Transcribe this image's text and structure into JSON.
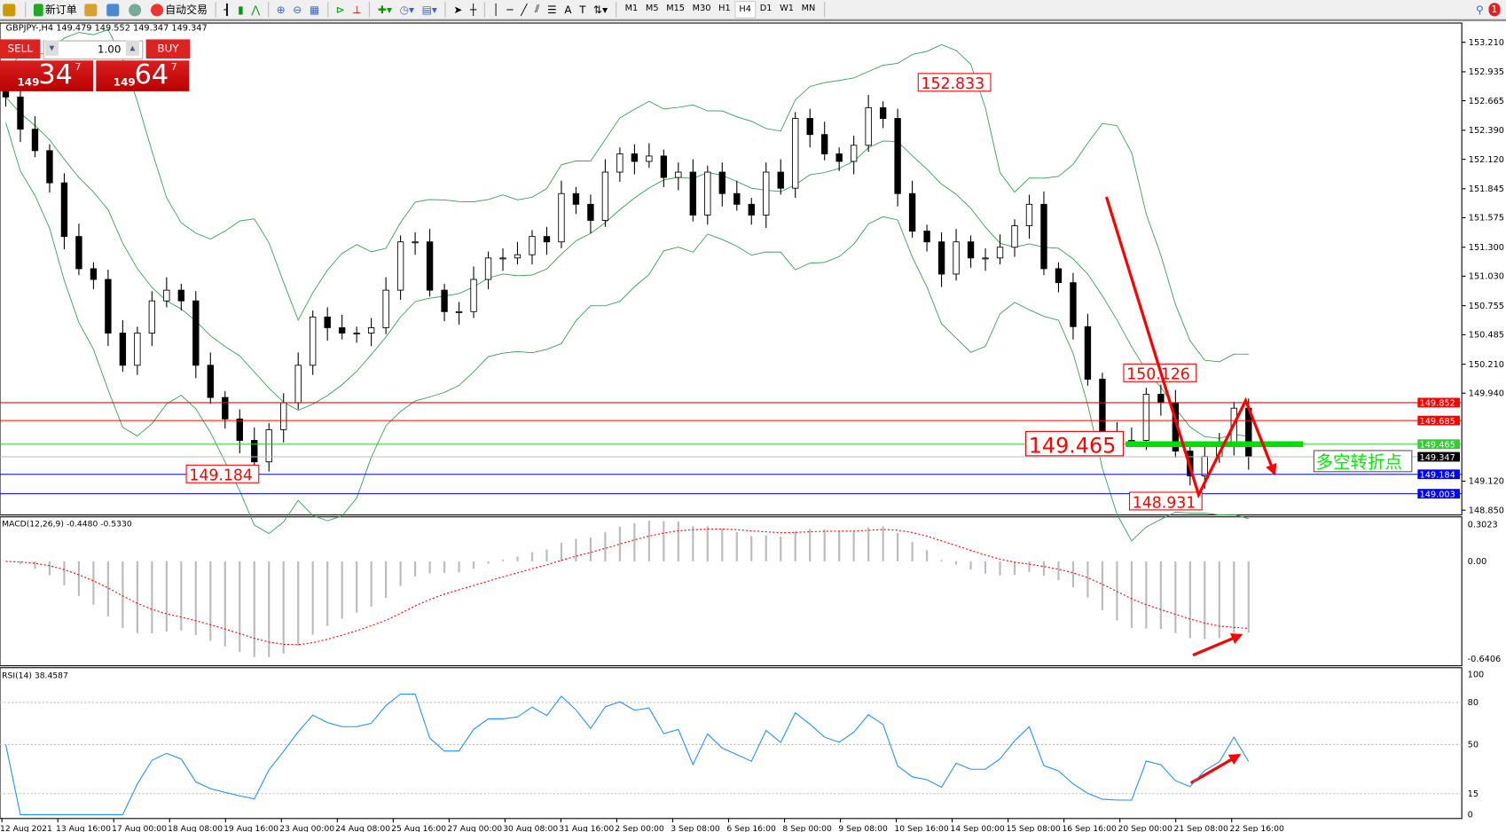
{
  "toolbar": {
    "new_order": "新订单",
    "auto_trading": "自动交易",
    "icons": [
      "zoom-icon",
      "new-order-icon",
      "metaeditor-icon",
      "history-icon",
      "signals-icon",
      "auto-trading-icon",
      "bar-chart-icon",
      "candlestick-icon",
      "line-chart-icon",
      "zoom-in-icon",
      "zoom-out-icon",
      "tile-icon",
      "autoscroll-icon",
      "chart-shift-icon",
      "indicators-icon",
      "periods-icon",
      "templates-icon",
      "cursor-icon",
      "crosshair-icon",
      "vertical-line-icon",
      "horizontal-line-icon",
      "trendline-icon",
      "equidistant-channel-icon",
      "fibonacci-icon",
      "text-icon",
      "text-label-icon",
      "arrows-icon"
    ],
    "timeframes": [
      "M1",
      "M5",
      "M15",
      "M30",
      "H1",
      "H4",
      "D1",
      "W1",
      "MN"
    ],
    "active_timeframe": "H4",
    "notification_count": "1"
  },
  "chart": {
    "header": "GBPJPY-,H4  149.479 149.552 149.347 149.347",
    "trade_panel": {
      "sell": "SELL",
      "buy": "BUY",
      "lot": "1.00",
      "bid_big": "149",
      "bid_pips": "34",
      "bid_frac": "7",
      "ask_big": "149",
      "ask_pips": "64",
      "ask_frac": "7"
    },
    "annotation_text": "多空转折点",
    "colors": {
      "up": "#ffffff",
      "down": "#000000",
      "bands": "#2e9e4e",
      "red": "#ff0000",
      "green": "#00cc00",
      "blue": "#0000ff",
      "rsi": "#1e90ff"
    }
  },
  "chart_data": [
    {
      "type": "candlestick",
      "title": "GBPJPY-,H4",
      "closes": [
        152.7,
        152.4,
        152.2,
        151.9,
        151.4,
        151.1,
        151.0,
        150.5,
        150.2,
        150.5,
        150.8,
        150.9,
        150.8,
        150.2,
        149.9,
        149.7,
        149.5,
        149.3,
        149.6,
        149.85,
        150.2,
        150.65,
        150.55,
        150.5,
        150.5,
        150.55,
        150.9,
        151.35,
        151.35,
        150.9,
        150.7,
        150.7,
        151.0,
        151.2,
        151.2,
        151.23,
        151.4,
        151.35,
        151.8,
        151.7,
        151.55,
        152.0,
        152.17,
        152.1,
        152.15,
        151.95,
        152.0,
        151.6,
        152.0,
        151.8,
        151.7,
        151.6,
        152.0,
        151.85,
        152.5,
        152.35,
        152.17,
        152.1,
        152.25,
        152.6,
        152.5,
        151.8,
        151.45,
        151.35,
        151.05,
        151.35,
        151.2,
        151.2,
        151.3,
        151.5,
        151.7,
        151.1,
        150.97,
        150.56,
        150.07,
        149.58,
        149.5,
        149.5,
        149.93,
        149.85,
        149.4,
        149.17,
        149.35,
        149.45,
        149.8,
        149.347
      ],
      "ylim": [
        148.76,
        153.35
      ],
      "y_ticks": [
        "153.210",
        "152.935",
        "152.665",
        "152.390",
        "152.120",
        "151.845",
        "151.575",
        "151.300",
        "151.030",
        "150.755",
        "150.485",
        "150.210",
        "149.940",
        "149.120",
        "148.850"
      ],
      "x_ticks": [
        "12 Aug 2021",
        "13 Aug 16:00",
        "17 Aug 00:00",
        "18 Aug 08:00",
        "19 Aug 16:00",
        "23 Aug 00:00",
        "24 Aug 08:00",
        "25 Aug 16:00",
        "27 Aug 00:00",
        "30 Aug 08:00",
        "31 Aug 16:00",
        "2 Sep 00:00",
        "3 Sep 08:00",
        "6 Sep 16:00",
        "8 Sep 00:00",
        "9 Sep 08:00",
        "10 Sep 16:00",
        "14 Sep 00:00",
        "15 Sep 08:00",
        "16 Sep 16:00",
        "20 Sep 00:00",
        "21 Sep 08:00",
        "22 Sep 16:00"
      ],
      "indicator": "Bollinger Bands",
      "hlines": [
        {
          "value": "149.852",
          "color": "#ff0000"
        },
        {
          "value": "149.685",
          "color": "#ff0000"
        },
        {
          "value": "149.465",
          "color": "#33cc33"
        },
        {
          "value": "149.347",
          "color": "#000000"
        },
        {
          "value": "149.184",
          "color": "#0000ff"
        },
        {
          "value": "149.003",
          "color": "#0000ff"
        }
      ],
      "labels": [
        {
          "text": "152.833",
          "price": 152.833
        },
        {
          "text": "150.126",
          "price": 150.126
        },
        {
          "text": "149.465",
          "price": 149.465
        },
        {
          "text": "149.184",
          "price": 149.184
        },
        {
          "text": "148.931",
          "price": 148.931
        }
      ]
    },
    {
      "type": "bar",
      "title": "MACD(12,26,9) -0.4480 -0.5330",
      "y_ticks": [
        "0.3023",
        "0.00",
        "-0.6406"
      ],
      "ylim": [
        -0.6406,
        0.3023
      ]
    },
    {
      "type": "line",
      "title": "RSI(14) 38.4587",
      "y_ticks": [
        "100",
        "80",
        "50",
        "15",
        "0"
      ],
      "ylim": [
        0,
        100
      ],
      "levels": [
        80,
        50,
        15
      ]
    }
  ]
}
